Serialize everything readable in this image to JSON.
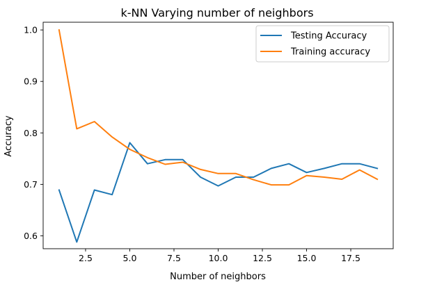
{
  "chart_data": {
    "type": "line",
    "title": "k-NN Varying number of neighbors",
    "xlabel": "Number of neighbors",
    "ylabel": "Accuracy",
    "x": [
      1,
      2,
      3,
      4,
      5,
      6,
      7,
      8,
      9,
      10,
      11,
      12,
      13,
      14,
      15,
      16,
      17,
      18,
      19
    ],
    "xlim": [
      0.1,
      19.9
    ],
    "ylim": [
      0.575,
      1.015
    ],
    "xticks": [
      2.5,
      5.0,
      7.5,
      10.0,
      12.5,
      15.0,
      17.5
    ],
    "xtick_labels": [
      "2.5",
      "5.0",
      "7.5",
      "10.0",
      "12.5",
      "15.0",
      "17.5"
    ],
    "yticks": [
      0.6,
      0.7,
      0.8,
      0.9,
      1.0
    ],
    "ytick_labels": [
      "0.6",
      "0.7",
      "0.8",
      "0.9",
      "1.0"
    ],
    "grid": false,
    "legend_position": "top-right",
    "series": [
      {
        "name": "Testing Accuracy",
        "color": "#1f77b4",
        "values": [
          0.689,
          0.588,
          0.689,
          0.68,
          0.781,
          0.74,
          0.748,
          0.748,
          0.714,
          0.697,
          0.714,
          0.714,
          0.731,
          0.74,
          0.723,
          0.731,
          0.74,
          0.74,
          0.731
        ]
      },
      {
        "name": "Training accuracy",
        "color": "#ff7f0e",
        "values": [
          1.0,
          0.808,
          0.822,
          0.792,
          0.768,
          0.752,
          0.739,
          0.743,
          0.729,
          0.721,
          0.721,
          0.709,
          0.699,
          0.699,
          0.717,
          0.714,
          0.71,
          0.728,
          0.71
        ]
      }
    ]
  }
}
